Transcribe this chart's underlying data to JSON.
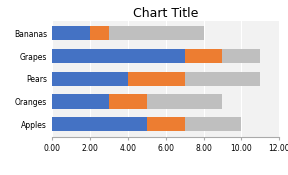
{
  "title": "Chart Title",
  "categories": [
    "Apples",
    "Oranges",
    "Pears",
    "Grapes",
    "Bananas"
  ],
  "series": {
    "John": [
      5,
      3,
      4,
      7,
      2
    ],
    "Jane": [
      2,
      2,
      3,
      2,
      1
    ],
    "Joe": [
      3,
      4,
      4,
      2,
      5
    ]
  },
  "colors": {
    "John": "#4472C4",
    "Jane": "#ED7D31",
    "Joe": "#BFBFBF"
  },
  "xlim": [
    0,
    12
  ],
  "xticks": [
    0.0,
    2.0,
    4.0,
    6.0,
    8.0,
    10.0,
    12.0
  ],
  "xtick_labels": [
    "0.00",
    "2.00",
    "4.00",
    "6.00",
    "8.00",
    "10.00",
    "12.00"
  ],
  "background_color": "#FFFFFF",
  "plot_bg_color": "#F2F2F2",
  "title_fontsize": 9,
  "tick_fontsize": 5.5,
  "legend_fontsize": 5.5,
  "bar_height": 0.62
}
